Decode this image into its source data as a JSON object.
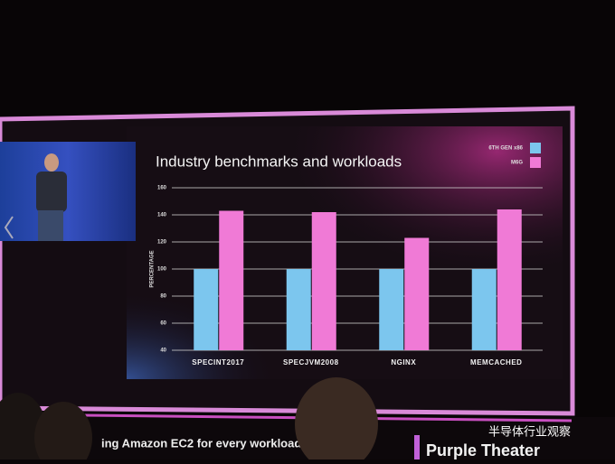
{
  "chart_data": {
    "type": "bar",
    "title": "Industry benchmarks and workloads",
    "y_label": "PERCENTAGE",
    "categories": [
      "SPECINT2017",
      "SPECJVM2008",
      "NGINX",
      "MEMCACHED"
    ],
    "series": [
      {
        "name": "6TH GEN x86",
        "color": "#7cc6ee",
        "values": [
          100,
          100,
          100,
          100
        ]
      },
      {
        "name": "M6G",
        "color": "#f07ad6",
        "values": [
          143,
          142,
          123,
          144
        ]
      }
    ],
    "ylim": [
      40,
      160
    ],
    "yticks": [
      40,
      60,
      80,
      100,
      120,
      140,
      160
    ],
    "grid": true,
    "legend": "top-right"
  },
  "screen": {
    "banner": "ing Amazon EC2 for every workload",
    "venue": "Purple Theater",
    "watermark": "半导体行业观察"
  }
}
